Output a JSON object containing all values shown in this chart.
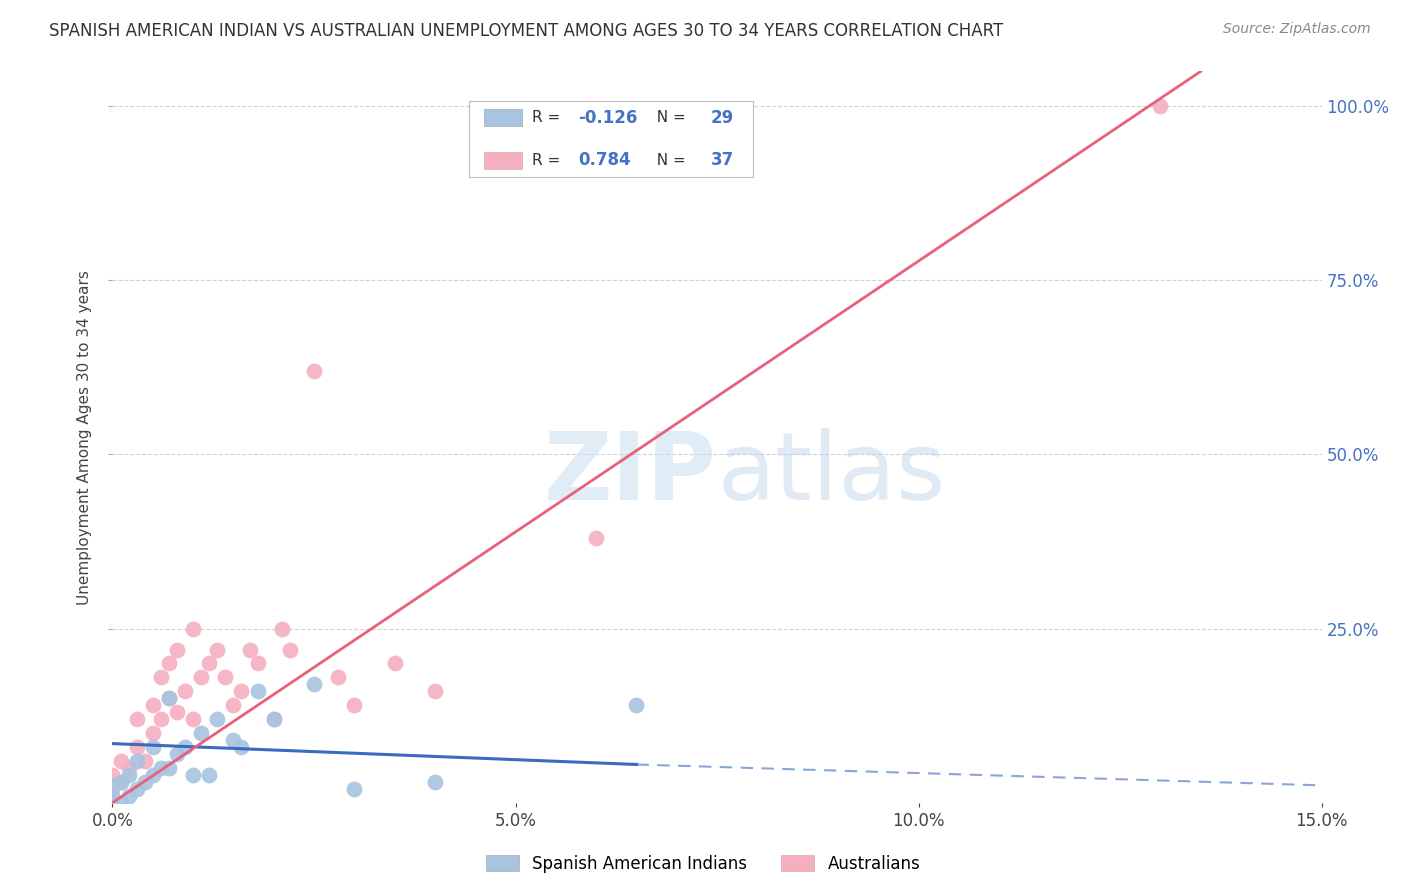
{
  "title": "SPANISH AMERICAN INDIAN VS AUSTRALIAN UNEMPLOYMENT AMONG AGES 30 TO 34 YEARS CORRELATION CHART",
  "source": "Source: ZipAtlas.com",
  "ylabel": "Unemployment Among Ages 30 to 34 years",
  "xlim": [
    0.0,
    0.15
  ],
  "ylim": [
    0.0,
    1.05
  ],
  "xtick_labels": [
    "0.0%",
    "5.0%",
    "10.0%",
    "15.0%"
  ],
  "xtick_vals": [
    0.0,
    0.05,
    0.1,
    0.15
  ],
  "ytick_labels": [
    "25.0%",
    "50.0%",
    "75.0%",
    "100.0%"
  ],
  "ytick_vals": [
    0.25,
    0.5,
    0.75,
    1.0
  ],
  "blue_color": "#a8c4e0",
  "pink_color": "#f4b0c0",
  "blue_line_color": "#3a6bbf",
  "pink_line_color": "#e8607a",
  "R_blue": -0.126,
  "N_blue": 29,
  "R_pink": 0.784,
  "N_pink": 37,
  "legend_label_blue": "Spanish American Indians",
  "legend_label_pink": "Australians",
  "watermark_zip": "ZIP",
  "watermark_atlas": "atlas",
  "background_color": "#ffffff",
  "grid_color": "#c8c8c8",
  "blue_scatter_x": [
    0.0,
    0.0,
    0.0,
    0.001,
    0.001,
    0.002,
    0.002,
    0.003,
    0.003,
    0.004,
    0.005,
    0.005,
    0.006,
    0.007,
    0.007,
    0.008,
    0.009,
    0.01,
    0.011,
    0.012,
    0.013,
    0.015,
    0.016,
    0.018,
    0.02,
    0.025,
    0.03,
    0.04,
    0.065
  ],
  "blue_scatter_y": [
    0.0,
    0.01,
    0.025,
    0.0,
    0.03,
    0.01,
    0.04,
    0.02,
    0.06,
    0.03,
    0.04,
    0.08,
    0.05,
    0.05,
    0.15,
    0.07,
    0.08,
    0.04,
    0.1,
    0.04,
    0.12,
    0.09,
    0.08,
    0.16,
    0.12,
    0.17,
    0.02,
    0.03,
    0.14
  ],
  "pink_scatter_x": [
    0.0,
    0.0,
    0.001,
    0.001,
    0.002,
    0.003,
    0.003,
    0.004,
    0.005,
    0.005,
    0.006,
    0.006,
    0.007,
    0.007,
    0.008,
    0.008,
    0.009,
    0.01,
    0.01,
    0.011,
    0.012,
    0.013,
    0.014,
    0.015,
    0.016,
    0.017,
    0.018,
    0.02,
    0.021,
    0.022,
    0.025,
    0.028,
    0.03,
    0.035,
    0.04,
    0.13,
    0.06
  ],
  "pink_scatter_y": [
    0.02,
    0.04,
    0.03,
    0.06,
    0.05,
    0.08,
    0.12,
    0.06,
    0.1,
    0.14,
    0.12,
    0.18,
    0.15,
    0.2,
    0.13,
    0.22,
    0.16,
    0.12,
    0.25,
    0.18,
    0.2,
    0.22,
    0.18,
    0.14,
    0.16,
    0.22,
    0.2,
    0.12,
    0.25,
    0.22,
    0.62,
    0.18,
    0.14,
    0.2,
    0.16,
    1.0,
    0.38
  ],
  "blue_solid_line_x": [
    0.0,
    0.065
  ],
  "blue_solid_line_y": [
    0.085,
    0.055
  ],
  "blue_dash_line_x": [
    0.065,
    0.15
  ],
  "blue_dash_line_y": [
    0.055,
    0.025
  ],
  "pink_line_x": [
    0.0,
    0.135
  ],
  "pink_line_y": [
    0.0,
    1.05
  ]
}
